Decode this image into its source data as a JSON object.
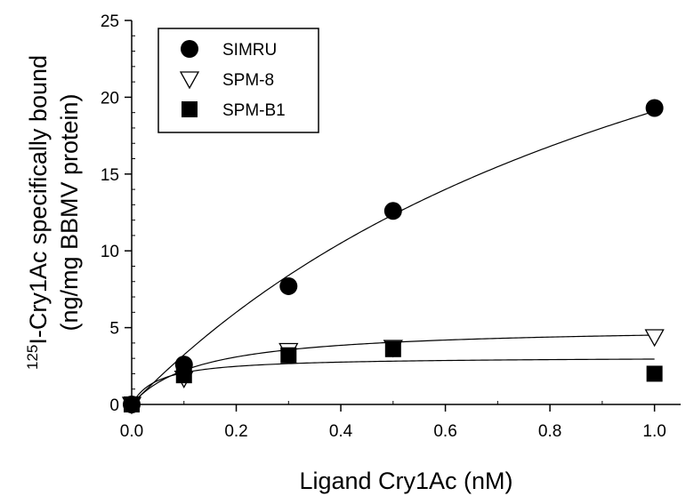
{
  "chart_data": {
    "type": "scatter",
    "xlabel": "Ligand Cry1Ac (nM)",
    "ylabel_line1_sup": "125",
    "ylabel_line1_main": "I-Cry1Ac specifically bound",
    "ylabel_line2": "(ng/mg BBMV protein)",
    "xlim": [
      0,
      1.05
    ],
    "ylim": [
      0,
      25
    ],
    "xticks": [
      "0.0",
      "0.2",
      "0.4",
      "0.6",
      "0.8",
      "1.0"
    ],
    "yticks": [
      "0",
      "5",
      "10",
      "15",
      "20",
      "25"
    ],
    "legend_position": "top-left",
    "series": [
      {
        "name": "SIMRU",
        "marker": "filled-circle",
        "x": [
          0.0,
          0.1,
          0.3,
          0.5,
          1.0
        ],
        "y": [
          0.0,
          2.6,
          7.7,
          12.6,
          19.3
        ],
        "fit": {
          "bmax": 42.0,
          "kd": 1.2
        }
      },
      {
        "name": "SPM-8",
        "marker": "open-triangle-down",
        "x": [
          0.0,
          0.1,
          0.3,
          0.5,
          1.0
        ],
        "y": [
          0.0,
          1.7,
          3.5,
          3.7,
          4.4
        ],
        "fit": {
          "bmax": 5.1,
          "kd": 0.13
        }
      },
      {
        "name": "SPM-B1",
        "marker": "filled-square",
        "x": [
          0.0,
          0.1,
          0.3,
          0.5,
          1.0
        ],
        "y": [
          0.0,
          1.9,
          3.2,
          3.6,
          2.0
        ],
        "fit": {
          "bmax": 3.1,
          "kd": 0.05
        }
      }
    ]
  }
}
